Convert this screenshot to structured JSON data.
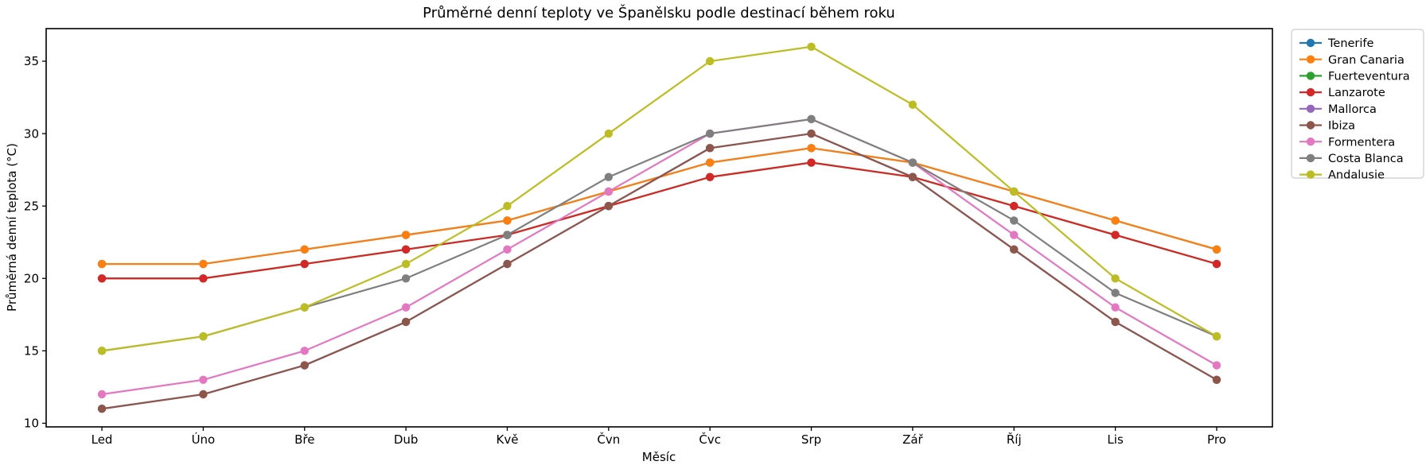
{
  "chart_data": {
    "type": "line",
    "title": "Průměrné denní teploty ve Španělsku podle destinací během roku",
    "xlabel": "Měsíc",
    "ylabel": "Průměrná denní teplota (°C)",
    "categories": [
      "Led",
      "Úno",
      "Bře",
      "Dub",
      "Kvě",
      "Čvn",
      "Čvc",
      "Srp",
      "Zář",
      "Říj",
      "Lis",
      "Pro"
    ],
    "yticks": [
      10,
      15,
      20,
      25,
      30,
      35
    ],
    "ylim": [
      9.75,
      37.25
    ],
    "grid": false,
    "legend_position": "outside-top-right",
    "marker": "circle",
    "series": [
      {
        "name": "Tenerife",
        "color": "#1f77b4",
        "values": [
          21,
          21,
          22,
          23,
          24,
          26,
          28,
          29,
          28,
          26,
          24,
          22
        ]
      },
      {
        "name": "Gran Canaria",
        "color": "#ff7f0e",
        "values": [
          21,
          21,
          22,
          23,
          24,
          26,
          28,
          29,
          28,
          26,
          24,
          22
        ]
      },
      {
        "name": "Fuerteventura",
        "color": "#2ca02c",
        "values": [
          20,
          20,
          21,
          22,
          23,
          25,
          27,
          28,
          27,
          25,
          23,
          21
        ]
      },
      {
        "name": "Lanzarote",
        "color": "#d62728",
        "values": [
          20,
          20,
          21,
          22,
          23,
          25,
          27,
          28,
          27,
          25,
          23,
          21
        ]
      },
      {
        "name": "Mallorca",
        "color": "#9467bd",
        "values": [
          11,
          12,
          14,
          17,
          21,
          25,
          29,
          30,
          27,
          22,
          17,
          13
        ]
      },
      {
        "name": "Ibiza",
        "color": "#8c564b",
        "values": [
          11,
          12,
          14,
          17,
          21,
          25,
          29,
          30,
          27,
          22,
          17,
          13
        ]
      },
      {
        "name": "Formentera",
        "color": "#e377c2",
        "values": [
          12,
          13,
          15,
          18,
          22,
          26,
          30,
          31,
          28,
          23,
          18,
          14
        ]
      },
      {
        "name": "Costa Blanca",
        "color": "#7f7f7f",
        "values": [
          15,
          16,
          18,
          20,
          23,
          27,
          30,
          31,
          28,
          24,
          19,
          16
        ]
      },
      {
        "name": "Andalusie",
        "color": "#bcbd22",
        "values": [
          15,
          16,
          18,
          21,
          25,
          30,
          35,
          36,
          32,
          26,
          20,
          16
        ]
      }
    ]
  }
}
